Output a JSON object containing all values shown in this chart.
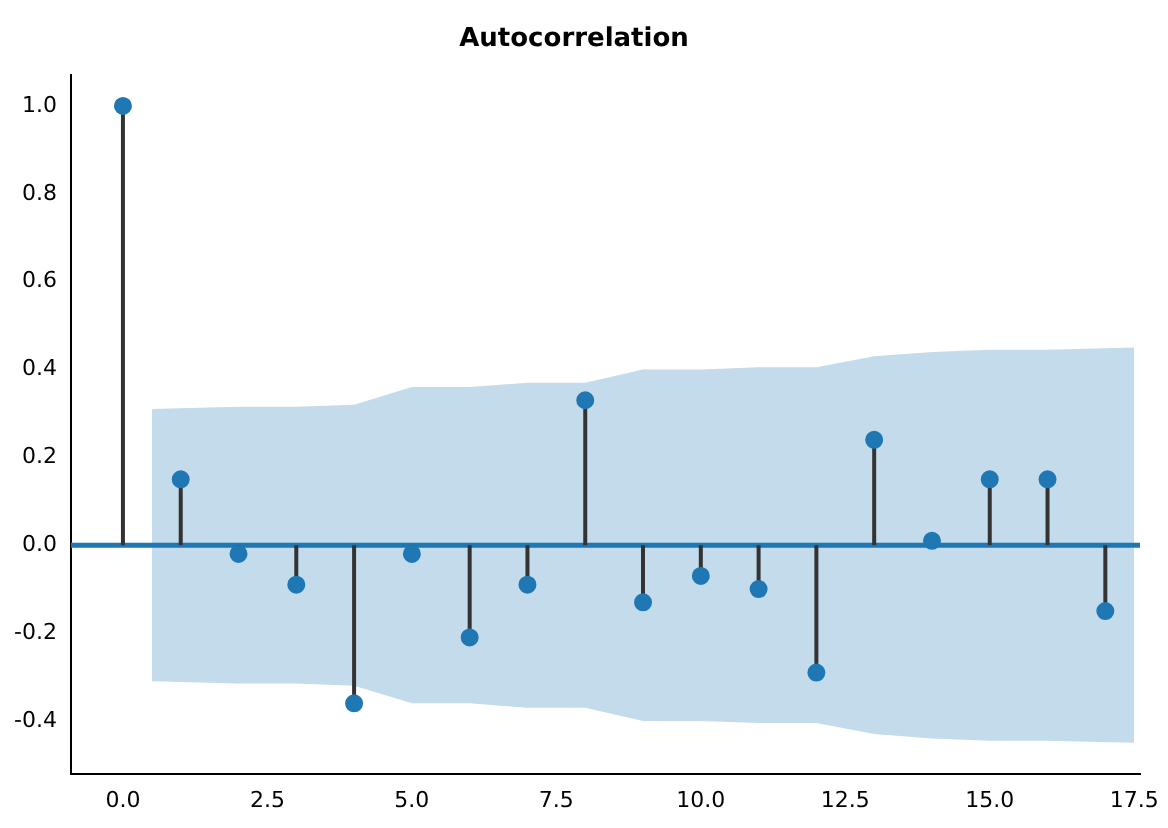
{
  "chart_data": {
    "type": "lollipop",
    "title": "Autocorrelation",
    "x": [
      0,
      1,
      2,
      3,
      4,
      5,
      6,
      7,
      8,
      9,
      10,
      11,
      12,
      13,
      14,
      15,
      16,
      17
    ],
    "series": [
      {
        "type": "line",
        "color": "#1f77b4",
        "values": [
          0,
          0,
          0,
          0,
          0,
          0,
          0,
          0,
          0,
          0,
          0,
          0,
          0,
          0,
          0,
          0,
          0,
          0,
          0
        ],
        "x": [
          -0.9,
          0.5,
          2,
          3,
          4,
          5,
          6,
          7,
          8,
          9,
          10,
          11,
          12,
          13,
          14,
          15,
          16,
          17.5,
          17.6
        ],
        "lower": [
          null,
          -0.31,
          -0.315,
          -0.315,
          -0.32,
          -0.36,
          -0.36,
          -0.37,
          -0.37,
          -0.4,
          -0.4,
          -0.405,
          -0.405,
          -0.43,
          -0.44,
          -0.445,
          -0.445,
          -0.45,
          null
        ],
        "upper": [
          null,
          0.31,
          0.315,
          0.315,
          0.32,
          0.36,
          0.36,
          0.37,
          0.37,
          0.4,
          0.4,
          0.405,
          0.405,
          0.43,
          0.44,
          0.445,
          0.445,
          0.45,
          null
        ]
      },
      {
        "color": "#1f77b4",
        "marker": "circle",
        "values": [
          1.0,
          0.15,
          -0.02,
          -0.09,
          -0.36,
          -0.02,
          -0.21,
          -0.09,
          0.33,
          -0.13,
          -0.07,
          -0.1,
          -0.29,
          0.24,
          0.01,
          0.15,
          0.15,
          -0.15
        ]
      }
    ],
    "xlim": [
      -0.9,
      17.6
    ],
    "ylim": [
      -0.52,
      1.07
    ],
    "xticks": [
      {
        "value": 0,
        "label": "0.0"
      },
      {
        "value": 2.5,
        "label": "2.5"
      },
      {
        "value": 5,
        "label": "5.0"
      },
      {
        "value": 7.5,
        "label": "7.5"
      },
      {
        "value": 10,
        "label": "10.0"
      },
      {
        "value": 12.5,
        "label": "12.5"
      },
      {
        "value": 15,
        "label": "15.0"
      },
      {
        "value": 17.5,
        "label": "17.5"
      }
    ],
    "yticks": [
      {
        "value": -0.4,
        "label": "-0.4"
      },
      {
        "value": -0.2,
        "label": "-0.2"
      },
      {
        "value": 0,
        "label": "0.0"
      },
      {
        "value": 0.2,
        "label": "0.2"
      },
      {
        "value": 0.4,
        "label": "0.4"
      },
      {
        "value": 0.6,
        "label": "0.6"
      },
      {
        "value": 0.8,
        "label": "0.8"
      },
      {
        "value": 1,
        "label": "1.0"
      }
    ],
    "grid": false,
    "legend": false
  }
}
